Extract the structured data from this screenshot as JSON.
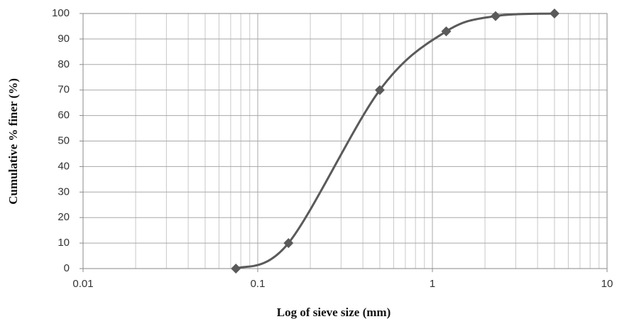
{
  "chart_data": {
    "type": "line",
    "x_label": "Log of sieve size (mm)",
    "y_label": "Cumulative % finer (%)",
    "x": [
      0.075,
      0.15,
      0.5,
      1.2,
      2.3,
      5
    ],
    "series": [
      {
        "color": "#5a5a5a",
        "values": [
          0,
          10,
          70,
          93,
          99,
          100
        ]
      }
    ],
    "xlim": [
      0.01,
      10
    ],
    "xticks": [
      0.01,
      0.1,
      1,
      10
    ],
    "xscale": "log",
    "ylim": [
      0,
      100
    ],
    "yticks": [
      0,
      10,
      20,
      30,
      40,
      50,
      60,
      70,
      80,
      90,
      100
    ],
    "grid": true,
    "smooth": true,
    "marker": "diamond"
  }
}
